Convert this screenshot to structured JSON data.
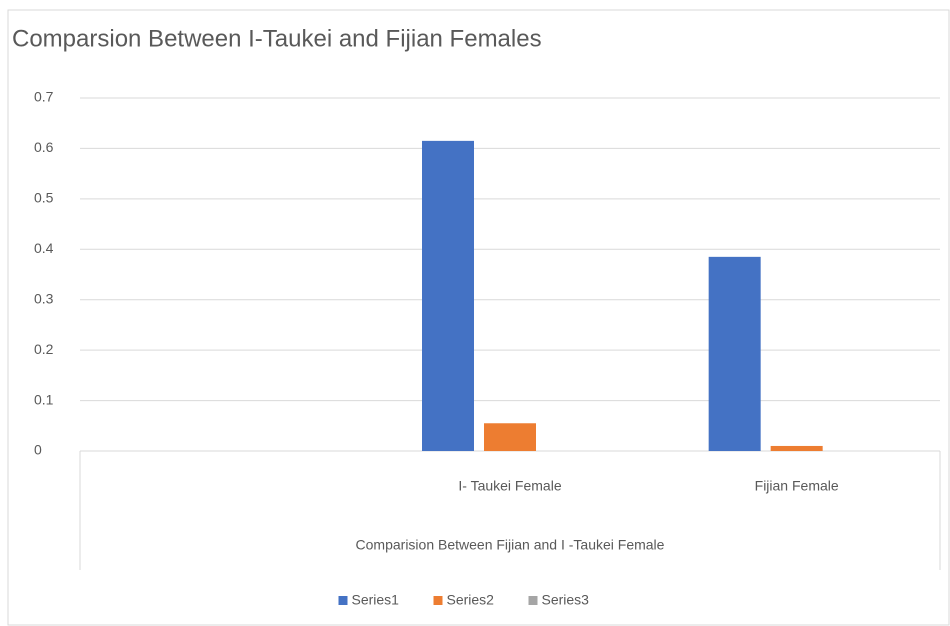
{
  "chart_data": {
    "type": "bar",
    "title": "Comparsion Between I-Taukei and Fijian Females",
    "x_label": "Comparision Between  Fijian and I -Taukei  Female",
    "categories": [
      null,
      "I- Taukei    Female",
      "Fijian Female"
    ],
    "series": [
      {
        "name": "Series1",
        "color": "#4472c4",
        "values": [
          null,
          0.615,
          0.385
        ]
      },
      {
        "name": "Series2",
        "color": "#ed7d31",
        "values": [
          null,
          0.055,
          0.01
        ]
      },
      {
        "name": "Series3",
        "color": "#a5a5a5",
        "values": [
          null,
          null,
          null
        ]
      }
    ],
    "ylim": [
      0,
      0.7
    ],
    "yticks": [
      0,
      0.1,
      0.2,
      0.3,
      0.4,
      0.5,
      0.6,
      0.7
    ],
    "grid": true,
    "legend": "bottom"
  }
}
